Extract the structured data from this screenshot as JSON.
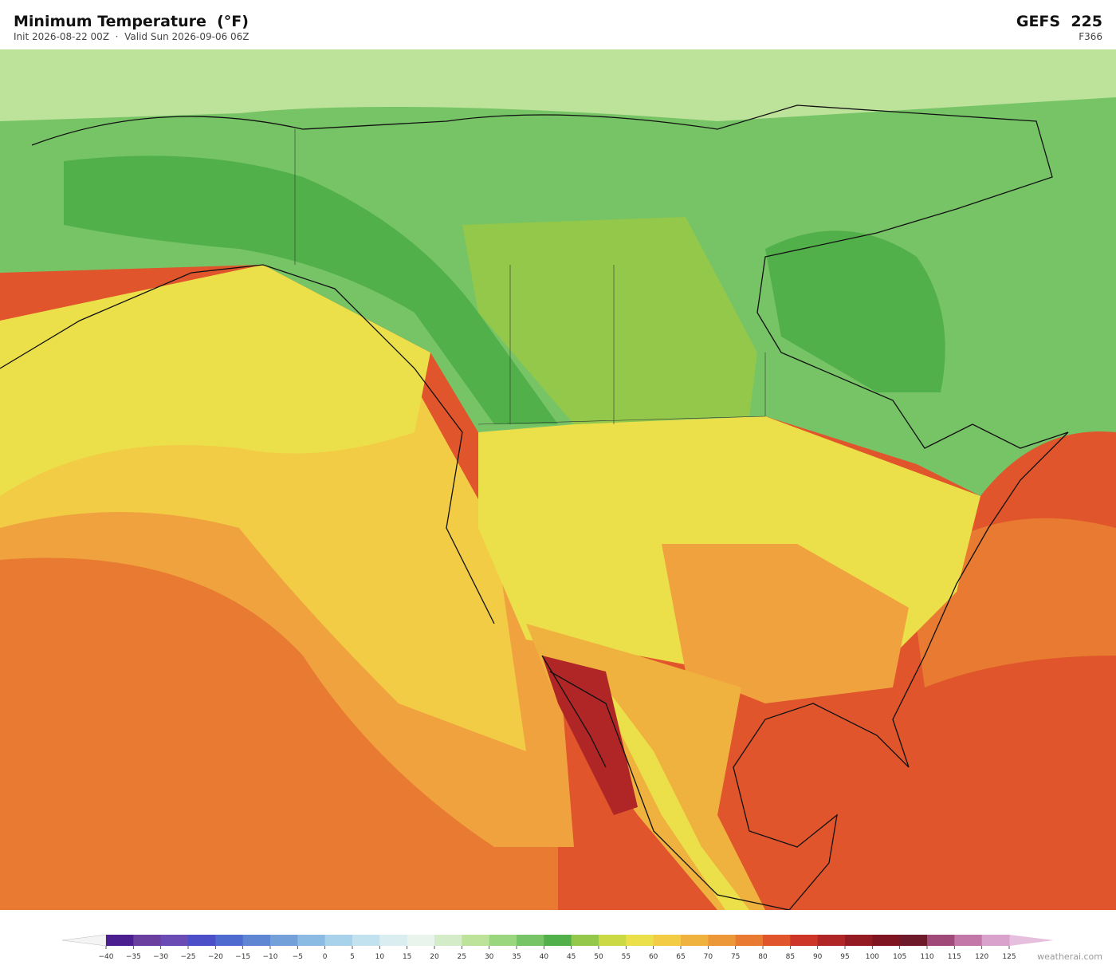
{
  "header": {
    "title": "Minimum Temperature  (°F)",
    "subtitle": "Init 2026-08-22 00Z  ·  Valid Sun 2026-09-06 06Z",
    "model": "GEFS  225",
    "forecast_hour": "F366"
  },
  "colorbar": {
    "ticks": [
      {
        "value": -40,
        "label": "−40"
      },
      {
        "value": -35,
        "label": "−35"
      },
      {
        "value": -30,
        "label": "−30"
      },
      {
        "value": -25,
        "label": "−25"
      },
      {
        "value": -20,
        "label": "−20"
      },
      {
        "value": -15,
        "label": "−15"
      },
      {
        "value": -10,
        "label": "−10"
      },
      {
        "value": -5,
        "label": "−5"
      },
      0,
      5,
      10,
      15,
      20,
      25,
      30,
      35,
      40,
      45,
      50,
      55,
      60,
      65,
      70,
      75,
      80,
      85,
      90,
      95,
      100,
      105,
      110,
      115,
      120,
      125
    ],
    "colors": [
      "#4b1f8f",
      "#6a3fa0",
      "#6b4cb5",
      "#4c4fc8",
      "#4f6bd0",
      "#5f86d3",
      "#74a0da",
      "#8bbbe3",
      "#a8d2ec",
      "#c2e2f0",
      "#daeef2",
      "#e8f4ec",
      "#d4ecc8",
      "#bde29a",
      "#9ad67e",
      "#76c466",
      "#52b04a",
      "#93c84a",
      "#cbd944",
      "#ece04a",
      "#f3cc45",
      "#f0b23f",
      "#ec9838",
      "#e87a32",
      "#e0552b",
      "#cc3527",
      "#b02626",
      "#951b22",
      "#7e1520",
      "#6e1a2a",
      "#a04a7a",
      "#c277a8",
      "#d9a2cc"
    ],
    "under_color": "#f4f4f4",
    "over_color": "#e6bede"
  },
  "footer": {
    "credit": "weatherai.com"
  }
}
